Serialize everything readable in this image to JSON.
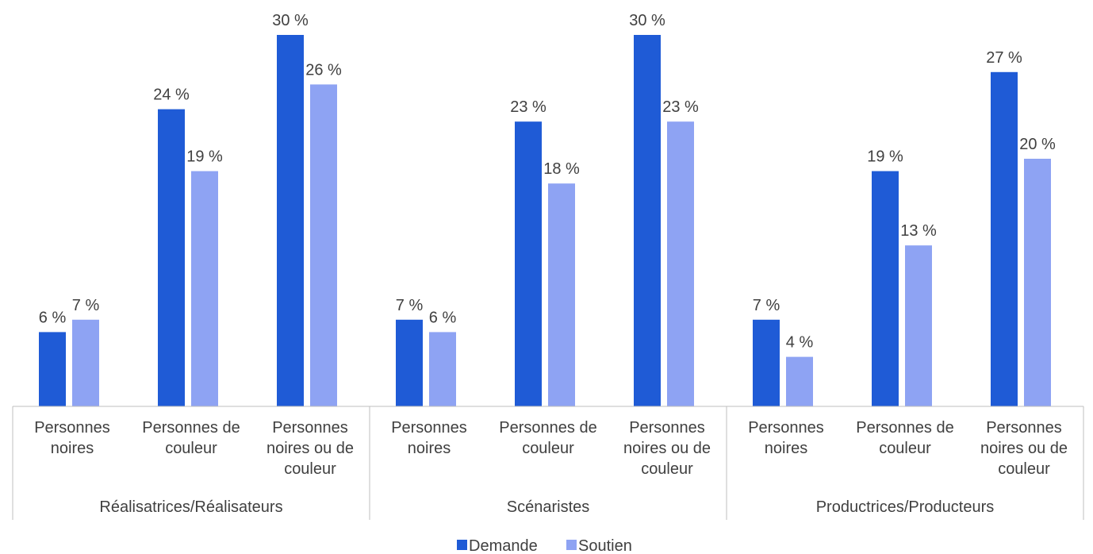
{
  "chart_data": {
    "type": "bar",
    "groups": [
      {
        "name": "Réalisatrices/Réalisateurs",
        "categories": [
          [
            "Personnes",
            "noires"
          ],
          [
            "Personnes de",
            "couleur"
          ],
          [
            "Personnes",
            "noires ou de",
            "couleur"
          ]
        ]
      },
      {
        "name": "Scénaristes",
        "categories": [
          [
            "Personnes",
            "noires"
          ],
          [
            "Personnes de",
            "couleur"
          ],
          [
            "Personnes",
            "noires ou de",
            "couleur"
          ]
        ]
      },
      {
        "name": "Productrices/Producteurs",
        "categories": [
          [
            "Personnes",
            "noires"
          ],
          [
            "Personnes de",
            "couleur"
          ],
          [
            "Personnes",
            "noires ou de",
            "couleur"
          ]
        ]
      }
    ],
    "series": [
      {
        "name": "Demande",
        "color": "#1f5bd6",
        "values": [
          6,
          24,
          30,
          7,
          23,
          30,
          7,
          19,
          27
        ],
        "labels": [
          "6 %",
          "24 %",
          "30 %",
          "7 %",
          "23 %",
          "30 %",
          "7 %",
          "19 %",
          "27 %"
        ]
      },
      {
        "name": "Soutien",
        "color": "#8ea3f3",
        "values": [
          7,
          19,
          26,
          6,
          18,
          23,
          4,
          13,
          20
        ],
        "labels": [
          "7 %",
          "19 %",
          "26 %",
          "6 %",
          "18 %",
          "23 %",
          "4 %",
          "13 %",
          "20 %"
        ]
      }
    ],
    "ylim": [
      0,
      32
    ],
    "grid": false,
    "legend_position": "bottom"
  }
}
